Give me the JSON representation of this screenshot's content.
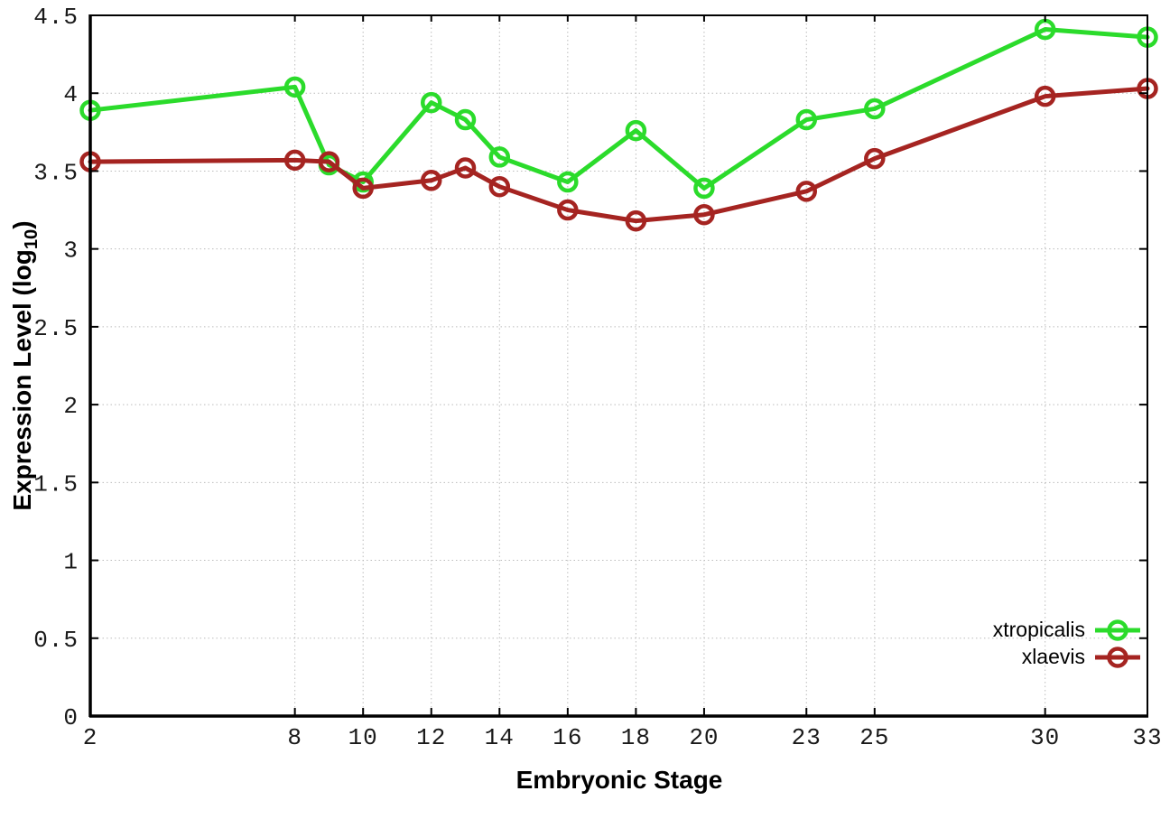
{
  "chart_data": {
    "type": "line",
    "title": "",
    "xlabel": "Embryonic Stage",
    "ylabel": {
      "prefix": "Expression Level (log",
      "subscript": "10",
      "suffix": ")"
    },
    "xlim": [
      2,
      33
    ],
    "ylim": [
      0,
      4.5
    ],
    "xticks": [
      2,
      8,
      10,
      12,
      14,
      16,
      18,
      20,
      23,
      25,
      30,
      33
    ],
    "yticks": [
      0,
      0.5,
      1,
      1.5,
      2,
      2.5,
      3,
      3.5,
      4,
      4.5
    ],
    "ytick_labels": [
      "0",
      "0.5",
      "1",
      "1.5",
      "2",
      "2.5",
      "3",
      "3.5",
      "4",
      "4.5"
    ],
    "grid": true,
    "legend_position": "bottom-right-inside",
    "marker": "open-circle",
    "x": [
      2,
      8,
      9,
      10,
      12,
      13,
      14,
      16,
      18,
      20,
      23,
      25,
      30,
      33
    ],
    "series": [
      {
        "name": "xtropicalis",
        "color": "#2bdb2b",
        "values": [
          3.89,
          4.04,
          3.54,
          3.43,
          3.94,
          3.83,
          3.59,
          3.43,
          3.76,
          3.39,
          3.83,
          3.9,
          4.41,
          4.36
        ]
      },
      {
        "name": "xlaevis",
        "color": "#a52421",
        "values": [
          3.56,
          3.57,
          3.56,
          3.39,
          3.44,
          3.52,
          3.4,
          3.25,
          3.18,
          3.22,
          3.37,
          3.58,
          3.98,
          4.03
        ]
      }
    ]
  }
}
